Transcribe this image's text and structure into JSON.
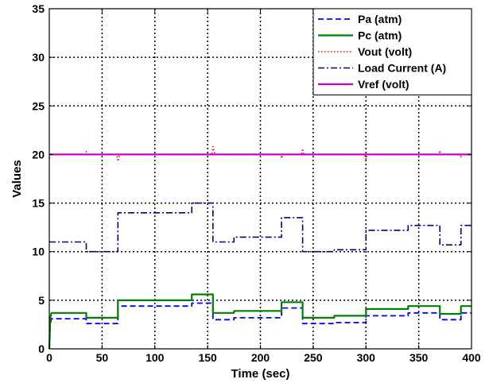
{
  "chart_data": {
    "type": "line",
    "title": "",
    "xlabel": "Time (sec)",
    "ylabel": "Values",
    "xlim": [
      0,
      400
    ],
    "ylim": [
      0,
      35
    ],
    "xticks": [
      0,
      50,
      100,
      150,
      200,
      250,
      300,
      350,
      400
    ],
    "yticks": [
      0,
      5,
      10,
      15,
      20,
      25,
      30,
      35
    ],
    "grid": true,
    "legend_position": "top-right",
    "series": [
      {
        "name": "Pa (atm)",
        "color": "#0000ff",
        "style": "dashed",
        "x": [
          0,
          1,
          2,
          35,
          35,
          65,
          65,
          135,
          135,
          155,
          155,
          175,
          175,
          220,
          220,
          240,
          240,
          270,
          270,
          300,
          300,
          340,
          340,
          370,
          370,
          390,
          390,
          400
        ],
        "y": [
          0,
          2.6,
          3.1,
          3.1,
          2.6,
          2.6,
          4.4,
          4.4,
          4.7,
          4.7,
          3.0,
          3.0,
          3.2,
          3.2,
          4.2,
          4.2,
          2.6,
          2.6,
          2.7,
          2.7,
          3.4,
          3.4,
          3.7,
          3.7,
          3.0,
          3.0,
          3.7,
          3.7
        ]
      },
      {
        "name": "Pc (atm)",
        "color": "#008000",
        "style": "solid",
        "x": [
          0,
          1,
          2,
          35,
          35,
          65,
          65,
          135,
          135,
          155,
          155,
          175,
          175,
          220,
          220,
          240,
          240,
          270,
          270,
          300,
          300,
          340,
          340,
          370,
          370,
          390,
          390,
          400
        ],
        "y": [
          0,
          3.2,
          3.7,
          3.7,
          3.2,
          3.2,
          5.0,
          5.0,
          5.6,
          5.6,
          3.7,
          3.7,
          3.9,
          3.9,
          4.8,
          4.8,
          3.2,
          3.2,
          3.4,
          3.4,
          4.1,
          4.1,
          4.4,
          4.4,
          3.6,
          3.6,
          4.4,
          4.4
        ]
      },
      {
        "name": "Vout (volt)",
        "color": "#ff0000",
        "style": "dotted",
        "x": [
          0,
          1,
          34,
          35,
          36,
          64,
          65,
          66,
          67,
          154,
          155,
          156,
          157,
          219,
          220,
          221,
          239,
          240,
          241,
          299,
          300,
          301,
          369,
          370,
          371,
          389,
          390,
          391,
          400
        ],
        "y": [
          19.6,
          20.0,
          20.0,
          20.3,
          20.0,
          20.0,
          19.3,
          19.7,
          20.0,
          20.0,
          20.8,
          20.4,
          20.0,
          20.0,
          19.6,
          20.0,
          20.0,
          20.6,
          20.0,
          20.0,
          19.5,
          20.0,
          20.0,
          20.4,
          20.0,
          20.0,
          19.7,
          20.0,
          20.0
        ]
      },
      {
        "name": "Load Current (A)",
        "color": "#00008b",
        "style": "dashdot",
        "x": [
          0,
          35,
          35,
          65,
          65,
          135,
          135,
          155,
          155,
          175,
          175,
          220,
          220,
          240,
          240,
          270,
          270,
          300,
          300,
          340,
          340,
          370,
          370,
          390,
          390,
          400
        ],
        "y": [
          11.0,
          11.0,
          10.0,
          10.0,
          14.0,
          14.0,
          15.0,
          15.0,
          11.0,
          11.0,
          11.5,
          11.5,
          13.5,
          13.5,
          10.0,
          10.0,
          10.2,
          10.2,
          12.2,
          12.2,
          12.7,
          12.7,
          10.7,
          10.7,
          12.7,
          12.7
        ]
      },
      {
        "name": "Vref (volt)",
        "color": "#cc00cc",
        "style": "solid",
        "x": [
          0,
          400
        ],
        "y": [
          20.0,
          20.0
        ]
      }
    ]
  }
}
